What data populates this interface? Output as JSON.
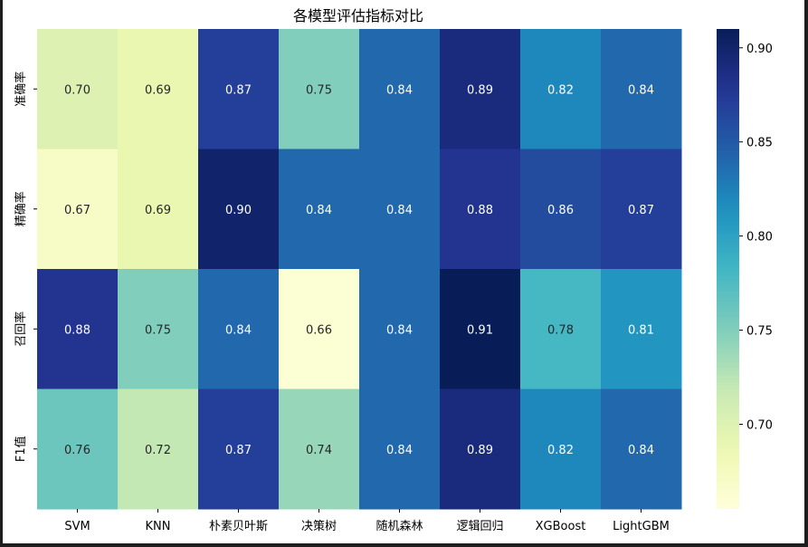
{
  "chart_data": {
    "type": "heatmap",
    "title": "各模型评估指标对比",
    "x_categories": [
      "SVM",
      "KNN",
      "朴素贝叶斯",
      "决策树",
      "随机森林",
      "逻辑回归",
      "XGBoost",
      "LightGBM"
    ],
    "y_categories": [
      "准确率",
      "精确率",
      "召回率",
      "F1值"
    ],
    "values": [
      [
        0.7,
        0.69,
        0.87,
        0.75,
        0.84,
        0.89,
        0.82,
        0.84
      ],
      [
        0.67,
        0.69,
        0.9,
        0.84,
        0.84,
        0.88,
        0.86,
        0.87
      ],
      [
        0.88,
        0.75,
        0.84,
        0.66,
        0.84,
        0.91,
        0.78,
        0.81
      ],
      [
        0.76,
        0.72,
        0.87,
        0.74,
        0.84,
        0.89,
        0.82,
        0.84
      ]
    ],
    "value_labels": [
      [
        "0.70",
        "0.69",
        "0.87",
        "0.75",
        "0.84",
        "0.89",
        "0.82",
        "0.84"
      ],
      [
        "0.67",
        "0.69",
        "0.90",
        "0.84",
        "0.84",
        "0.88",
        "0.86",
        "0.87"
      ],
      [
        "0.88",
        "0.75",
        "0.84",
        "0.66",
        "0.84",
        "0.91",
        "0.78",
        "0.81"
      ],
      [
        "0.76",
        "0.72",
        "0.87",
        "0.74",
        "0.84",
        "0.89",
        "0.82",
        "0.84"
      ]
    ],
    "colormap": "YlGnBu",
    "vmin": 0.655,
    "vmax": 0.91,
    "colorbar_ticks": [
      0.7,
      0.75,
      0.8,
      0.85,
      0.9
    ],
    "colorbar_tick_labels": [
      "0.70",
      "0.75",
      "0.80",
      "0.85",
      "0.90"
    ],
    "colorbar_placement": "right",
    "grid": false,
    "xlabel": "",
    "ylabel": ""
  }
}
